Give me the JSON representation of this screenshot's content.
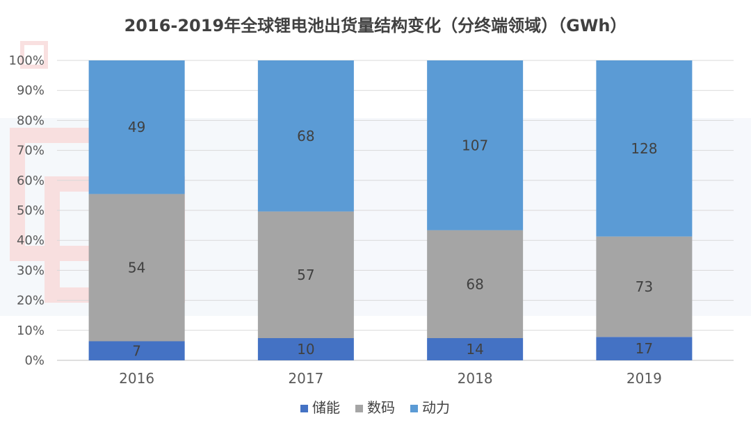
{
  "chart_data": {
    "type": "bar",
    "stacked": true,
    "normalized": true,
    "title": "2016-2019年全球锂电池出货量结构变化（分终端领域）（GWh）",
    "categories": [
      "2016",
      "2017",
      "2018",
      "2019"
    ],
    "series": [
      {
        "name": "储能",
        "color": "#4472c4",
        "values": [
          7,
          10,
          14,
          17
        ]
      },
      {
        "name": "数码",
        "color": "#a5a5a5",
        "values": [
          54,
          57,
          68,
          73
        ]
      },
      {
        "name": "动力",
        "color": "#5b9bd5",
        "values": [
          49,
          68,
          107,
          128
        ]
      }
    ],
    "yticks": [
      "0%",
      "10%",
      "20%",
      "30%",
      "40%",
      "50%",
      "60%",
      "70%",
      "80%",
      "90%",
      "100%"
    ],
    "ylim": [
      0,
      100
    ],
    "grid": true,
    "legend_position": "bottom"
  }
}
